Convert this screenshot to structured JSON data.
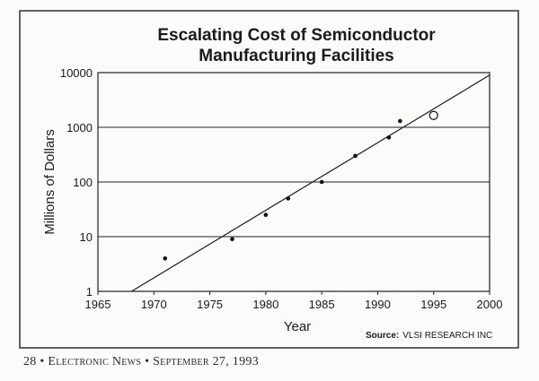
{
  "chart_data": {
    "type": "scatter",
    "title": [
      "Escalating Cost of Semiconductor",
      "Manufacturing Facilities"
    ],
    "xlabel": "Year",
    "ylabel": "Millions of Dollars",
    "xlim": [
      1965,
      2000
    ],
    "ylim": [
      1,
      10000
    ],
    "yscale": "log",
    "grid": "horizontal",
    "xticks": [
      "1965",
      "1970",
      "1975",
      "1980",
      "1985",
      "1990",
      "1995",
      "2000"
    ],
    "yticks": [
      "1",
      "10",
      "100",
      "1000",
      "10000"
    ],
    "points": [
      {
        "x": 1971,
        "y": 4
      },
      {
        "x": 1977,
        "y": 9
      },
      {
        "x": 1980,
        "y": 25
      },
      {
        "x": 1982,
        "y": 50
      },
      {
        "x": 1985,
        "y": 100
      },
      {
        "x": 1988,
        "y": 300
      },
      {
        "x": 1991,
        "y": 650
      },
      {
        "x": 1992,
        "y": 1300
      }
    ],
    "projected_point": {
      "x": 1995,
      "y": 1650
    },
    "trend_line": [
      {
        "x": 1968,
        "y": 1
      },
      {
        "x": 2000,
        "y": 9000
      }
    ],
    "source_label": "Source:",
    "source": "VLSI RESEARCH INC"
  },
  "footer": "28 • Electronic News • September 27, 1993"
}
